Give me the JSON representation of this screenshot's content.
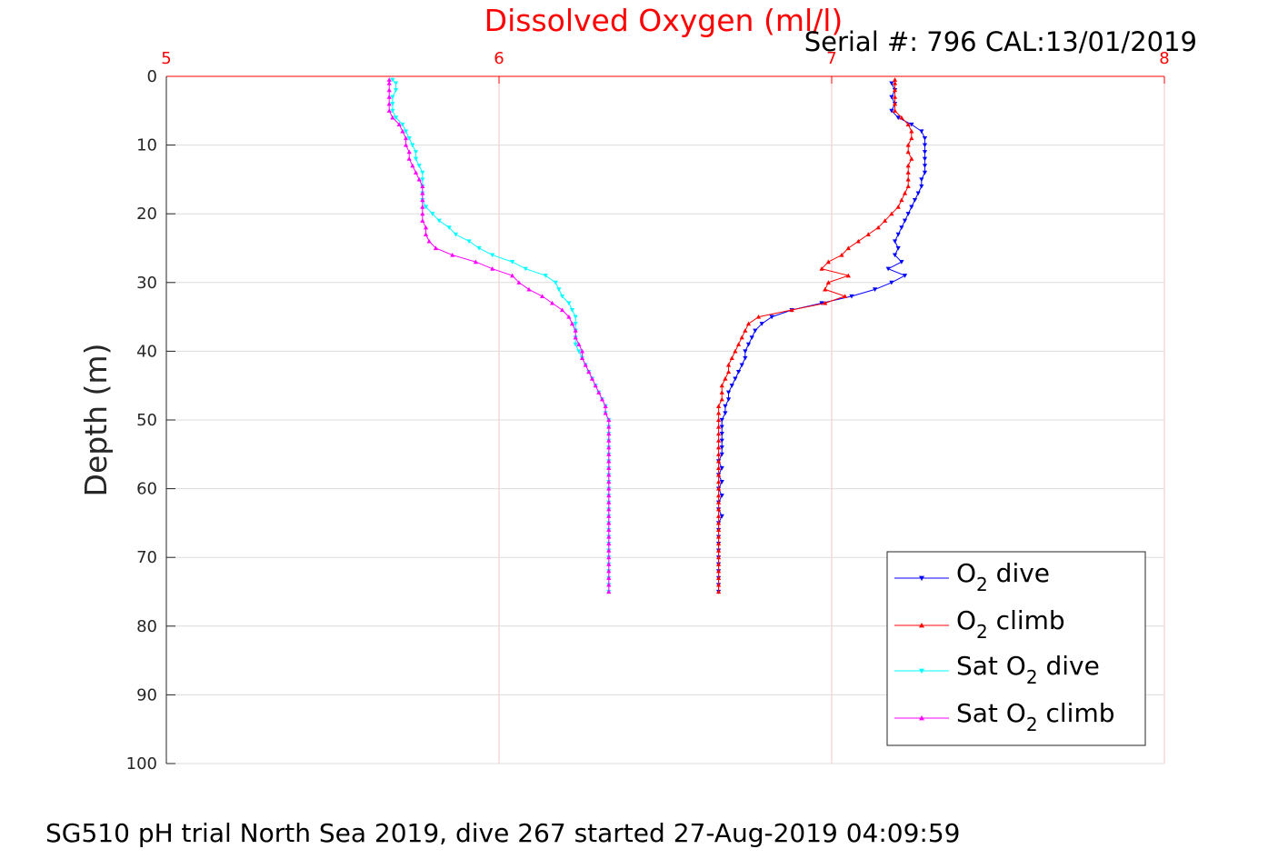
{
  "chart_data": {
    "type": "line",
    "title": "Dissolved Oxygen (ml/l)",
    "subtitle": "Serial #: 796  CAL:13/01/2019",
    "footer": "SG510 pH trial North Sea 2019, dive 267 started 27-Aug-2019 04:09:59",
    "xlabel": "",
    "ylabel": "Depth (m)",
    "xlim": [
      5,
      8
    ],
    "ylim": [
      0,
      100
    ],
    "y_reversed": true,
    "x_axis_position": "top",
    "xticks": [
      "5",
      "6",
      "7",
      "8"
    ],
    "yticks": [
      "0",
      "10",
      "20",
      "30",
      "40",
      "50",
      "60",
      "70",
      "80",
      "90",
      "100"
    ],
    "grid": true,
    "legend_placement": "bottom-right",
    "colors": {
      "title": "#ff0000",
      "x_axis": "#ff0000",
      "grid_x": "#f5c6c6",
      "grid_y": "#dcdcdc"
    },
    "series": [
      {
        "name": "O2 dive",
        "label_parts": [
          "O",
          "2",
          " dive"
        ],
        "color": "#0000ff",
        "marker": "triangle-down",
        "points": [
          [
            7.18,
            1
          ],
          [
            7.19,
            2
          ],
          [
            7.18,
            3
          ],
          [
            7.19,
            4
          ],
          [
            7.18,
            5
          ],
          [
            7.2,
            6
          ],
          [
            7.24,
            7
          ],
          [
            7.27,
            8
          ],
          [
            7.28,
            9
          ],
          [
            7.28,
            10
          ],
          [
            7.28,
            11
          ],
          [
            7.28,
            12
          ],
          [
            7.28,
            13
          ],
          [
            7.28,
            14
          ],
          [
            7.27,
            15
          ],
          [
            7.27,
            16
          ],
          [
            7.26,
            17
          ],
          [
            7.25,
            18
          ],
          [
            7.24,
            19
          ],
          [
            7.23,
            20
          ],
          [
            7.22,
            21
          ],
          [
            7.21,
            22
          ],
          [
            7.2,
            23
          ],
          [
            7.19,
            24
          ],
          [
            7.2,
            25
          ],
          [
            7.19,
            26
          ],
          [
            7.21,
            27
          ],
          [
            7.17,
            28
          ],
          [
            7.22,
            29
          ],
          [
            7.18,
            30
          ],
          [
            7.13,
            31
          ],
          [
            7.06,
            32
          ],
          [
            6.97,
            33
          ],
          [
            6.88,
            34
          ],
          [
            6.82,
            35
          ],
          [
            6.79,
            36
          ],
          [
            6.77,
            37
          ],
          [
            6.76,
            38
          ],
          [
            6.75,
            39
          ],
          [
            6.74,
            40
          ],
          [
            6.74,
            41
          ],
          [
            6.73,
            42
          ],
          [
            6.72,
            43
          ],
          [
            6.71,
            44
          ],
          [
            6.7,
            45
          ],
          [
            6.69,
            46
          ],
          [
            6.69,
            47
          ],
          [
            6.68,
            48
          ],
          [
            6.68,
            49
          ],
          [
            6.67,
            50
          ],
          [
            6.67,
            51
          ],
          [
            6.67,
            52
          ],
          [
            6.67,
            53
          ],
          [
            6.67,
            54
          ],
          [
            6.67,
            55
          ],
          [
            6.66,
            56
          ],
          [
            6.67,
            57
          ],
          [
            6.66,
            58
          ],
          [
            6.67,
            59
          ],
          [
            6.66,
            60
          ],
          [
            6.67,
            61
          ],
          [
            6.66,
            62
          ],
          [
            6.66,
            63
          ],
          [
            6.67,
            64
          ],
          [
            6.66,
            65
          ],
          [
            6.66,
            66
          ],
          [
            6.66,
            67
          ],
          [
            6.66,
            68
          ],
          [
            6.66,
            69
          ],
          [
            6.66,
            70
          ],
          [
            6.66,
            71
          ],
          [
            6.66,
            72
          ],
          [
            6.66,
            73
          ],
          [
            6.66,
            74
          ],
          [
            6.66,
            75
          ]
        ]
      },
      {
        "name": "O2 climb",
        "label_parts": [
          "O",
          "2",
          " climb"
        ],
        "color": "#ff0000",
        "marker": "triangle-up",
        "points": [
          [
            7.19,
            0.5
          ],
          [
            7.19,
            1
          ],
          [
            7.19,
            2
          ],
          [
            7.19,
            3
          ],
          [
            7.19,
            4
          ],
          [
            7.19,
            5
          ],
          [
            7.21,
            6
          ],
          [
            7.23,
            7
          ],
          [
            7.24,
            8
          ],
          [
            7.24,
            9
          ],
          [
            7.23,
            10
          ],
          [
            7.23,
            11
          ],
          [
            7.24,
            12
          ],
          [
            7.23,
            13
          ],
          [
            7.23,
            14
          ],
          [
            7.23,
            15
          ],
          [
            7.23,
            16
          ],
          [
            7.22,
            17
          ],
          [
            7.21,
            18
          ],
          [
            7.2,
            19
          ],
          [
            7.18,
            20
          ],
          [
            7.16,
            21
          ],
          [
            7.14,
            22
          ],
          [
            7.11,
            23
          ],
          [
            7.08,
            24
          ],
          [
            7.05,
            25
          ],
          [
            7.03,
            26
          ],
          [
            6.99,
            27
          ],
          [
            6.97,
            28
          ],
          [
            7.05,
            29
          ],
          [
            6.99,
            30
          ],
          [
            6.98,
            31
          ],
          [
            7.04,
            32
          ],
          [
            6.98,
            33
          ],
          [
            6.88,
            34
          ],
          [
            6.78,
            35
          ],
          [
            6.75,
            36
          ],
          [
            6.74,
            37
          ],
          [
            6.73,
            38
          ],
          [
            6.72,
            39
          ],
          [
            6.71,
            40
          ],
          [
            6.7,
            41
          ],
          [
            6.69,
            42
          ],
          [
            6.69,
            43
          ],
          [
            6.68,
            44
          ],
          [
            6.67,
            45
          ],
          [
            6.67,
            46
          ],
          [
            6.67,
            47
          ],
          [
            6.66,
            48
          ],
          [
            6.66,
            49
          ],
          [
            6.66,
            50
          ],
          [
            6.66,
            51
          ],
          [
            6.66,
            52
          ],
          [
            6.66,
            53
          ],
          [
            6.66,
            54
          ],
          [
            6.66,
            55
          ],
          [
            6.66,
            56
          ],
          [
            6.66,
            57
          ],
          [
            6.66,
            58
          ],
          [
            6.66,
            59
          ],
          [
            6.66,
            60
          ],
          [
            6.66,
            61
          ],
          [
            6.66,
            62
          ],
          [
            6.66,
            63
          ],
          [
            6.66,
            64
          ],
          [
            6.66,
            65
          ],
          [
            6.66,
            66
          ],
          [
            6.66,
            67
          ],
          [
            6.66,
            68
          ],
          [
            6.66,
            69
          ],
          [
            6.66,
            70
          ],
          [
            6.66,
            71
          ],
          [
            6.66,
            72
          ],
          [
            6.66,
            73
          ],
          [
            6.66,
            74
          ],
          [
            6.66,
            75
          ]
        ]
      },
      {
        "name": "Sat O2 dive",
        "label_parts": [
          "Sat O",
          "2",
          " dive"
        ],
        "color": "#00ffff",
        "marker": "triangle-down",
        "points": [
          [
            5.68,
            0.5
          ],
          [
            5.69,
            1
          ],
          [
            5.69,
            2
          ],
          [
            5.68,
            3
          ],
          [
            5.68,
            4
          ],
          [
            5.68,
            5
          ],
          [
            5.69,
            6
          ],
          [
            5.71,
            7
          ],
          [
            5.72,
            8
          ],
          [
            5.73,
            9
          ],
          [
            5.74,
            10
          ],
          [
            5.75,
            11
          ],
          [
            5.75,
            12
          ],
          [
            5.76,
            13
          ],
          [
            5.77,
            14
          ],
          [
            5.77,
            15
          ],
          [
            5.77,
            16
          ],
          [
            5.77,
            17
          ],
          [
            5.77,
            18
          ],
          [
            5.78,
            19
          ],
          [
            5.8,
            20
          ],
          [
            5.82,
            21
          ],
          [
            5.85,
            22
          ],
          [
            5.87,
            23
          ],
          [
            5.91,
            24
          ],
          [
            5.94,
            25
          ],
          [
            5.98,
            26
          ],
          [
            6.04,
            27
          ],
          [
            6.08,
            28
          ],
          [
            6.14,
            29
          ],
          [
            6.17,
            30
          ],
          [
            6.18,
            31
          ],
          [
            6.19,
            32
          ],
          [
            6.21,
            33
          ],
          [
            6.22,
            34
          ],
          [
            6.23,
            35
          ],
          [
            6.23,
            36
          ],
          [
            6.23,
            37
          ],
          [
            6.23,
            38
          ],
          [
            6.23,
            39
          ],
          [
            6.24,
            40
          ],
          [
            6.25,
            41
          ],
          [
            6.26,
            42
          ],
          [
            6.27,
            43
          ],
          [
            6.28,
            44
          ],
          [
            6.29,
            45
          ],
          [
            6.3,
            46
          ],
          [
            6.31,
            47
          ],
          [
            6.32,
            48
          ],
          [
            6.32,
            49
          ],
          [
            6.33,
            50
          ],
          [
            6.33,
            51
          ],
          [
            6.33,
            52
          ],
          [
            6.33,
            53
          ],
          [
            6.33,
            54
          ],
          [
            6.33,
            55
          ],
          [
            6.33,
            56
          ],
          [
            6.33,
            57
          ],
          [
            6.33,
            58
          ],
          [
            6.33,
            59
          ],
          [
            6.33,
            60
          ],
          [
            6.33,
            61
          ],
          [
            6.33,
            62
          ],
          [
            6.33,
            63
          ],
          [
            6.33,
            64
          ],
          [
            6.33,
            65
          ],
          [
            6.33,
            66
          ],
          [
            6.33,
            67
          ],
          [
            6.33,
            68
          ],
          [
            6.33,
            69
          ],
          [
            6.33,
            70
          ],
          [
            6.33,
            71
          ],
          [
            6.33,
            72
          ],
          [
            6.33,
            73
          ],
          [
            6.33,
            74
          ],
          [
            6.33,
            75
          ]
        ]
      },
      {
        "name": "Sat O2 climb",
        "label_parts": [
          "Sat O",
          "2",
          " climb"
        ],
        "color": "#ff00ff",
        "marker": "triangle-up",
        "points": [
          [
            5.67,
            0.5
          ],
          [
            5.67,
            1
          ],
          [
            5.67,
            2
          ],
          [
            5.67,
            3
          ],
          [
            5.67,
            4
          ],
          [
            5.67,
            5
          ],
          [
            5.68,
            6
          ],
          [
            5.7,
            7
          ],
          [
            5.71,
            8
          ],
          [
            5.72,
            9
          ],
          [
            5.72,
            10
          ],
          [
            5.73,
            11
          ],
          [
            5.73,
            12
          ],
          [
            5.74,
            13
          ],
          [
            5.75,
            14
          ],
          [
            5.76,
            15
          ],
          [
            5.77,
            16
          ],
          [
            5.77,
            17
          ],
          [
            5.77,
            18
          ],
          [
            5.77,
            19
          ],
          [
            5.77,
            20
          ],
          [
            5.77,
            21
          ],
          [
            5.78,
            22
          ],
          [
            5.78,
            23
          ],
          [
            5.79,
            24
          ],
          [
            5.81,
            25
          ],
          [
            5.86,
            26
          ],
          [
            5.93,
            27
          ],
          [
            5.98,
            28
          ],
          [
            6.04,
            29
          ],
          [
            6.06,
            30
          ],
          [
            6.09,
            31
          ],
          [
            6.13,
            32
          ],
          [
            6.16,
            33
          ],
          [
            6.19,
            34
          ],
          [
            6.21,
            35
          ],
          [
            6.22,
            36
          ],
          [
            6.23,
            37
          ],
          [
            6.23,
            38
          ],
          [
            6.24,
            39
          ],
          [
            6.25,
            40
          ],
          [
            6.25,
            41
          ],
          [
            6.26,
            42
          ],
          [
            6.27,
            43
          ],
          [
            6.28,
            44
          ],
          [
            6.29,
            45
          ],
          [
            6.3,
            46
          ],
          [
            6.31,
            47
          ],
          [
            6.32,
            48
          ],
          [
            6.32,
            49
          ],
          [
            6.33,
            50
          ],
          [
            6.33,
            51
          ],
          [
            6.33,
            52
          ],
          [
            6.33,
            53
          ],
          [
            6.33,
            54
          ],
          [
            6.33,
            55
          ],
          [
            6.33,
            56
          ],
          [
            6.33,
            57
          ],
          [
            6.33,
            58
          ],
          [
            6.33,
            59
          ],
          [
            6.33,
            60
          ],
          [
            6.33,
            61
          ],
          [
            6.33,
            62
          ],
          [
            6.33,
            63
          ],
          [
            6.33,
            64
          ],
          [
            6.33,
            65
          ],
          [
            6.33,
            66
          ],
          [
            6.33,
            67
          ],
          [
            6.33,
            68
          ],
          [
            6.33,
            69
          ],
          [
            6.33,
            70
          ],
          [
            6.33,
            71
          ],
          [
            6.33,
            72
          ],
          [
            6.33,
            73
          ],
          [
            6.33,
            74
          ],
          [
            6.33,
            75
          ]
        ]
      }
    ]
  }
}
